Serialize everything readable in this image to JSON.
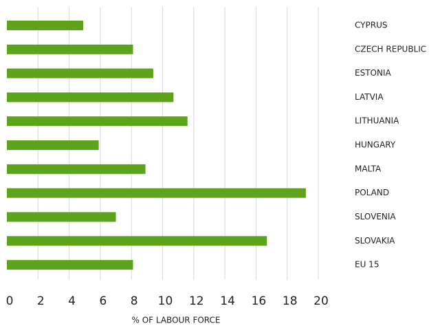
{
  "chart_data": {
    "type": "bar",
    "orientation": "horizontal",
    "categories": [
      "CYPRUS",
      "CZECH REPUBLIC",
      "ESTONIA",
      "LATVIA",
      "LITHUANIA",
      "HUNGARY",
      "MALTA",
      "POLAND",
      "SLOVENIA",
      "SLOVAKIA",
      "EU 15"
    ],
    "values": [
      4.9,
      8.1,
      9.4,
      10.7,
      11.6,
      5.9,
      8.9,
      19.2,
      7.0,
      16.7,
      8.1
    ],
    "color": "#5da31c",
    "xlim": [
      0,
      20
    ],
    "xticks": [
      0,
      2,
      4,
      6,
      8,
      10,
      12,
      14,
      16,
      18,
      20
    ],
    "xlabel": "% OF LABOUR FORCE",
    "grid": true
  }
}
